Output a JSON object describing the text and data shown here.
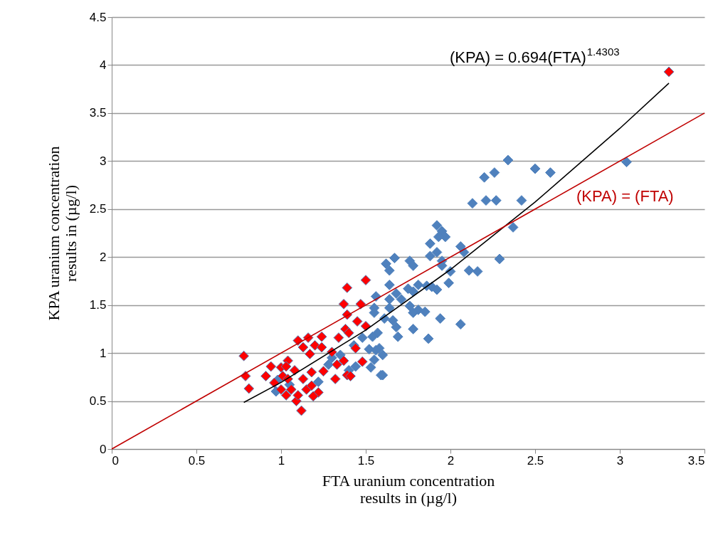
{
  "chart_data": {
    "type": "scatter",
    "xlabel": "FTA uranium concentration\nresults in (µg/l)",
    "ylabel": "KPA uranium concentration\nresults in (µg/l)",
    "xlim": [
      0,
      3.5
    ],
    "xticks": [
      0,
      0.5,
      1,
      1.5,
      2,
      2.5,
      3,
      3.5
    ],
    "ylim": [
      0,
      4.5
    ],
    "yticks": [
      0,
      0.5,
      1,
      1.5,
      2,
      2.5,
      3,
      3.5,
      4,
      4.5
    ],
    "grid": "y",
    "annotations": [
      "(KPA) = 0.694(FTA)$^{1.4303}$",
      "(KPA) = (FTA)"
    ],
    "series": [
      {
        "color": "#4f81bd",
        "marker": "diamond",
        "x": [
          2.34,
          2.2,
          2.26,
          2.13,
          2.21,
          2.27,
          2.42,
          2.5,
          2.59,
          3.04,
          2.37,
          2.29,
          1.92,
          1.88,
          1.95,
          1.97,
          1.93,
          2.06,
          2.08,
          1.88,
          1.92,
          1.95,
          2.11,
          2.16,
          2.0,
          1.99,
          1.95,
          1.67,
          1.62,
          1.64,
          1.76,
          1.78,
          1.64,
          1.56,
          1.81,
          1.75,
          1.86,
          1.89,
          1.92,
          1.78,
          1.68,
          1.71,
          1.64,
          1.76,
          1.81,
          1.85,
          1.78,
          1.55,
          1.64,
          1.66,
          1.55,
          1.61,
          1.94,
          2.06,
          1.68,
          1.69,
          1.78,
          1.87,
          1.57,
          1.55,
          1.59,
          1.4,
          1.44,
          1.48,
          1.43,
          1.52,
          1.56,
          1.54,
          1.58,
          1.6,
          1.53,
          1.6,
          0.97,
          1.05,
          1.22,
          1.28,
          1.3,
          1.35,
          0.98
        ],
        "values": [
          3.01,
          2.83,
          2.88,
          2.56,
          2.59,
          2.59,
          2.59,
          2.92,
          2.88,
          2.99,
          2.31,
          1.98,
          2.33,
          2.14,
          2.27,
          2.21,
          2.21,
          2.11,
          2.05,
          2.01,
          2.05,
          1.96,
          1.86,
          1.85,
          1.85,
          1.73,
          1.91,
          1.99,
          1.93,
          1.86,
          1.96,
          1.91,
          1.71,
          1.59,
          1.71,
          1.67,
          1.7,
          1.69,
          1.66,
          1.64,
          1.62,
          1.56,
          1.56,
          1.49,
          1.45,
          1.43,
          1.42,
          1.47,
          1.47,
          1.34,
          1.42,
          1.36,
          1.36,
          1.3,
          1.27,
          1.17,
          1.25,
          1.15,
          1.21,
          0.93,
          0.77,
          0.82,
          0.86,
          1.16,
          1.08,
          1.04,
          1.03,
          1.17,
          1.05,
          0.77,
          0.85,
          0.98,
          0.6,
          0.67,
          0.7,
          0.88,
          0.95,
          0.98,
          0.72
        ]
      },
      {
        "color": "#ff0000",
        "marker": "diamond",
        "x": [
          0.78,
          0.79,
          0.81,
          0.94,
          0.91,
          1.0,
          1.04,
          1.1,
          1.16,
          1.13,
          1.17,
          1.24,
          1.2,
          1.24,
          1.25,
          1.3,
          1.34,
          1.37,
          1.39,
          1.39,
          1.38,
          1.5,
          1.47,
          1.45,
          1.5,
          1.4,
          1.44,
          1.48,
          1.32,
          1.39,
          1.01,
          0.96,
          1.04,
          1.0,
          1.03,
          1.09,
          1.12,
          1.06,
          1.13,
          1.18,
          1.15,
          1.18,
          1.22,
          1.19,
          1.1,
          1.33,
          1.37,
          1.41,
          1.08,
          1.03,
          3.29
        ],
        "values": [
          0.97,
          0.76,
          0.63,
          0.86,
          0.76,
          0.85,
          0.92,
          1.13,
          1.16,
          1.06,
          0.99,
          1.17,
          1.08,
          1.06,
          0.81,
          1.01,
          1.16,
          1.51,
          1.68,
          1.4,
          1.25,
          1.76,
          1.51,
          1.33,
          1.28,
          1.21,
          1.05,
          0.91,
          0.73,
          0.77,
          0.76,
          0.69,
          0.73,
          0.62,
          0.56,
          0.5,
          0.4,
          0.62,
          0.73,
          0.8,
          0.62,
          0.66,
          0.59,
          0.55,
          0.56,
          0.88,
          0.92,
          0.76,
          0.82,
          0.86,
          3.93
        ]
      },
      {
        "type": "line",
        "color": "#000000",
        "x": [
          0.78,
          1,
          1.5,
          2,
          2.5,
          3,
          3.29
        ],
        "values": [
          0.486,
          0.694,
          1.239,
          1.87,
          2.573,
          3.34,
          3.811
        ]
      },
      {
        "type": "line",
        "color": "#c00000",
        "x": [
          0,
          3.5
        ],
        "values": [
          0,
          3.5
        ]
      }
    ]
  }
}
